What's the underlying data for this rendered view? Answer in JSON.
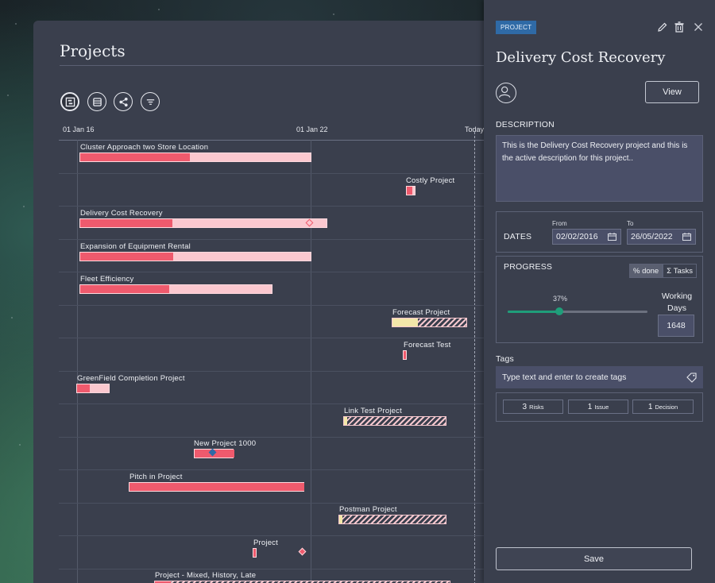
{
  "page": {
    "title": "Projects"
  },
  "timeline": {
    "axis_labels": [
      "01 Jan 16",
      "01 Jan 22",
      "Today"
    ],
    "rows": [
      {
        "label": "Cluster Approach two Store Location"
      },
      {
        "label": "Costly Project"
      },
      {
        "label": "Delivery Cost Recovery"
      },
      {
        "label": "Expansion of Equipment Rental"
      },
      {
        "label": "Fleet Efficiency"
      },
      {
        "label": "Forecast Project"
      },
      {
        "label": "Forecast Test"
      },
      {
        "label": "GreenField Completion Project"
      },
      {
        "label": "Link Test Project"
      },
      {
        "label": "New Project 1000"
      },
      {
        "label": "Pitch in Project"
      },
      {
        "label": "Postman Project"
      },
      {
        "label": "Project"
      },
      {
        "label": "Project - Mixed, History, Late"
      }
    ]
  },
  "detail": {
    "badge": "PROJECT",
    "title": "Delivery Cost Recovery",
    "view_label": "View",
    "description_label": "DESCRIPTION",
    "description": "This is the Delivery Cost Recovery project and this is the active description for this project..",
    "dates_label": "DATES",
    "from_label": "From",
    "to_label": "To",
    "from_value": "02/02/2016",
    "to_value": "26/05/2022",
    "progress_label": "PROGRESS",
    "toggle_done": "% done",
    "toggle_tasks": "Σ Tasks",
    "progress_percent_label": "37%",
    "progress_fraction": 0.37,
    "working_days_label": "Working Days",
    "working_days": "1648",
    "tags_label": "Tags",
    "tags_placeholder": "Type text and enter to create tags",
    "risks_count": "3",
    "risks_label": "Risks",
    "issue_count": "1",
    "issue_label": "Issue",
    "decision_count": "1",
    "decision_label": "Decision",
    "save_label": "Save"
  },
  "colors": {
    "accent": "#1f9e7a",
    "badge": "#2f6aa6",
    "bar_progress": "#ef5a6d",
    "bar_base": "#fbc8cf"
  }
}
